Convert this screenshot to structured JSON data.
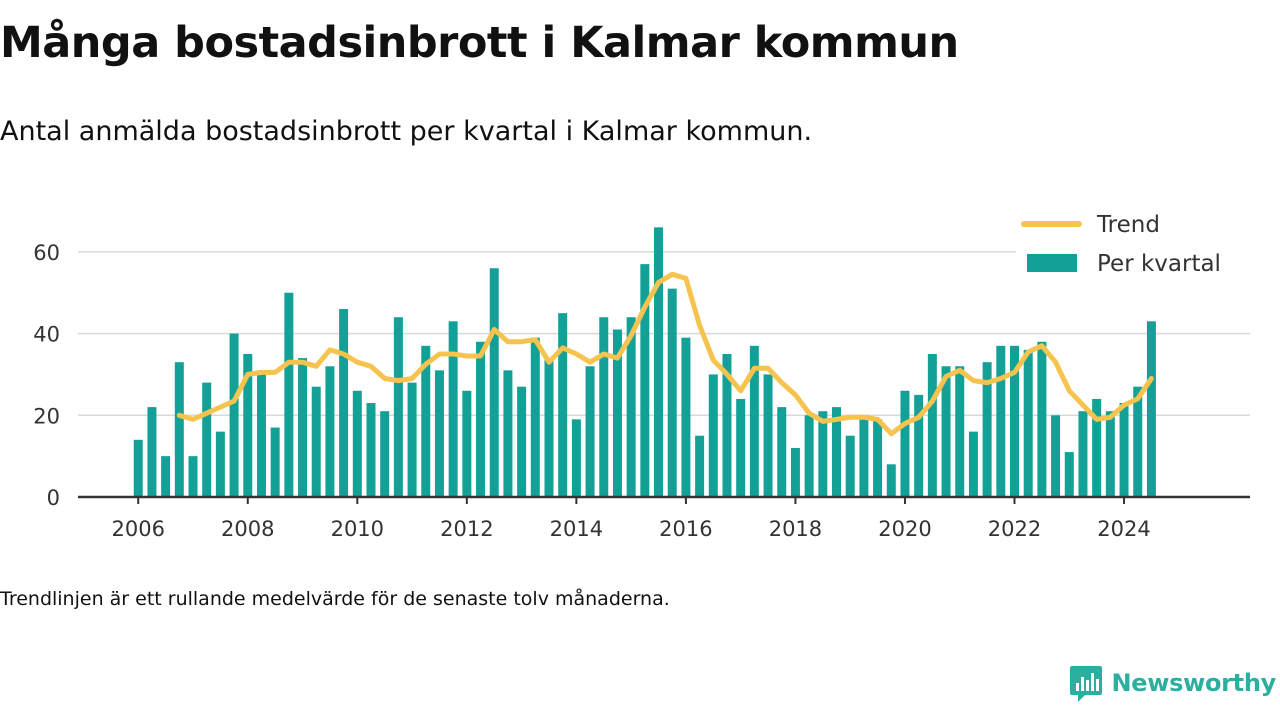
{
  "title": "Många bostadsinbrott i Kalmar kommun",
  "subtitle": "Antal anmälda bostadsinbrott per kvartal i Kalmar kommun.",
  "footnote": "Trendlinjen är ett rullande medelvärde för de senaste tolv månaderna.",
  "brand": "Newsworthy",
  "colors": {
    "bar": "#13a197",
    "trend": "#f6c34f",
    "axis": "#333333",
    "grid": "#d9d9d9",
    "brand": "#2bb0a0"
  },
  "chart_data": {
    "type": "bar",
    "x_start": 2006.0,
    "x_step": 0.25,
    "xlim": [
      2004.9,
      2026.3
    ],
    "ylim": [
      0,
      70
    ],
    "x_ticks": [
      2006,
      2008,
      2010,
      2012,
      2014,
      2016,
      2018,
      2020,
      2022,
      2024
    ],
    "y_ticks": [
      0,
      20,
      40,
      60
    ],
    "grid": true,
    "legend": "top-right",
    "series": [
      {
        "name": "Per kvartal",
        "kind": "bar",
        "values": [
          14,
          22,
          10,
          33,
          10,
          28,
          16,
          40,
          35,
          30,
          17,
          50,
          34,
          27,
          32,
          46,
          26,
          23,
          21,
          44,
          28,
          37,
          31,
          43,
          26,
          38,
          56,
          31,
          27,
          39,
          34,
          45,
          19,
          32,
          44,
          41,
          44,
          57,
          66,
          51,
          39,
          15,
          30,
          35,
          24,
          37,
          30,
          22,
          12,
          20,
          21,
          22,
          15,
          20,
          19,
          8,
          26,
          25,
          35,
          32,
          32,
          16,
          33,
          37,
          37,
          36,
          38,
          20,
          11,
          21,
          24,
          21,
          23,
          27,
          43
        ]
      },
      {
        "name": "Trend",
        "kind": "line",
        "values": [
          null,
          null,
          null,
          20,
          19,
          20.5,
          22,
          23.5,
          30,
          30.5,
          30.5,
          33,
          33,
          32,
          36,
          35,
          33,
          32,
          29,
          28.5,
          29,
          32.5,
          35,
          35,
          34.5,
          34.5,
          41,
          38,
          38,
          38.5,
          33,
          36.5,
          35,
          33,
          35,
          34,
          39.5,
          46.5,
          52.5,
          54.5,
          53.5,
          42,
          33.5,
          30,
          26,
          31.5,
          31.5,
          28,
          25,
          20.5,
          18.5,
          19,
          19.5,
          19.5,
          19,
          15.5,
          18,
          19.5,
          23.5,
          29.5,
          31,
          28.5,
          28,
          29,
          30.5,
          35.5,
          37,
          33,
          26,
          22.5,
          19,
          19.5,
          22.5,
          24,
          29
        ]
      }
    ]
  }
}
